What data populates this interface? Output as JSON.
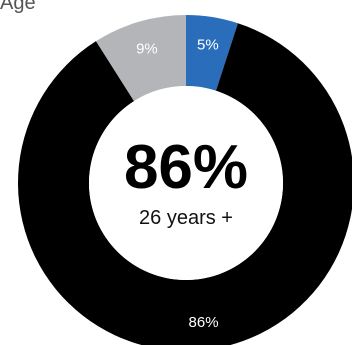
{
  "chart_data": {
    "type": "pie",
    "title": "Age",
    "donut": true,
    "slices": [
      {
        "label": "5%",
        "value": 5,
        "color": "#2a6ebb"
      },
      {
        "label": "86%",
        "value": 86,
        "color": "#000000"
      },
      {
        "label": "9%",
        "value": 9,
        "color": "#b3b5b8"
      }
    ],
    "center_value": "86%",
    "center_label": "26 years +"
  }
}
